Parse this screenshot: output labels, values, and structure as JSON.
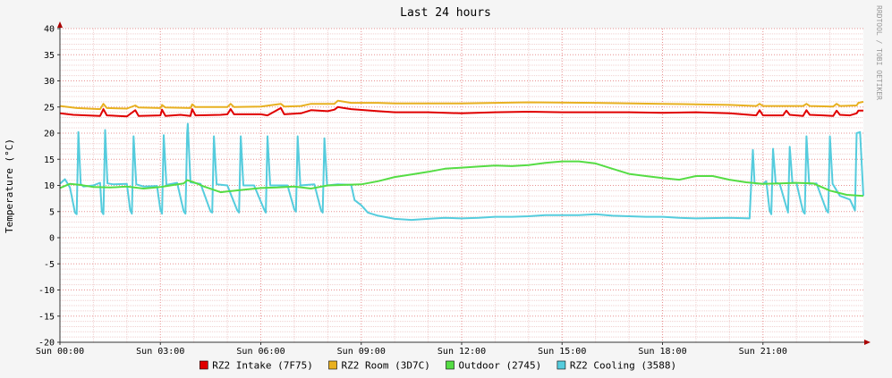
{
  "chart_data": {
    "type": "line",
    "title": "Last 24 hours",
    "ylabel": "Temperature (°C)",
    "watermark": "RRDTOOL / TOBI OETIKER",
    "xlim": [
      0,
      24
    ],
    "ylim": [
      -20,
      40
    ],
    "yticks": [
      40,
      35,
      30,
      25,
      20,
      15,
      10,
      5,
      0,
      -5,
      -10,
      -15,
      -20
    ],
    "xticks": [
      {
        "hour": 0,
        "label": "Sun 00:00"
      },
      {
        "hour": 3,
        "label": "Sun 03:00"
      },
      {
        "hour": 6,
        "label": "Sun 06:00"
      },
      {
        "hour": 9,
        "label": "Sun 09:00"
      },
      {
        "hour": 12,
        "label": "Sun 12:00"
      },
      {
        "hour": 15,
        "label": "Sun 15:00"
      },
      {
        "hour": 18,
        "label": "Sun 18:00"
      },
      {
        "hour": 21,
        "label": "Sun 21:00"
      }
    ],
    "grid": true,
    "legend_position": "bottom",
    "series": [
      {
        "name": "RZ2 Intake (7F75)",
        "color": "#e00000",
        "points": [
          [
            0,
            23.8
          ],
          [
            0.4,
            23.5
          ],
          [
            1.2,
            23.3
          ],
          [
            1.3,
            24.6
          ],
          [
            1.4,
            23.4
          ],
          [
            2,
            23.2
          ],
          [
            2.25,
            24.4
          ],
          [
            2.35,
            23.3
          ],
          [
            3,
            23.4
          ],
          [
            3.05,
            24.5
          ],
          [
            3.15,
            23.3
          ],
          [
            3.6,
            23.5
          ],
          [
            3.9,
            23.3
          ],
          [
            3.95,
            24.6
          ],
          [
            4.05,
            23.4
          ],
          [
            4.8,
            23.5
          ],
          [
            5,
            23.6
          ],
          [
            5.1,
            24.6
          ],
          [
            5.2,
            23.6
          ],
          [
            6,
            23.6
          ],
          [
            6.2,
            23.4
          ],
          [
            6.6,
            24.8
          ],
          [
            6.7,
            23.6
          ],
          [
            7.2,
            23.8
          ],
          [
            7.5,
            24.4
          ],
          [
            8,
            24.2
          ],
          [
            8.2,
            24.5
          ],
          [
            8.3,
            25
          ],
          [
            8.7,
            24.6
          ],
          [
            9.5,
            24.2
          ],
          [
            10,
            24
          ],
          [
            11,
            24
          ],
          [
            12,
            23.8
          ],
          [
            13,
            24
          ],
          [
            14,
            24.1
          ],
          [
            15,
            24
          ],
          [
            16,
            24
          ],
          [
            17,
            24
          ],
          [
            18,
            23.9
          ],
          [
            19,
            24
          ],
          [
            20,
            23.8
          ],
          [
            20.8,
            23.4
          ],
          [
            20.9,
            24.4
          ],
          [
            21,
            23.4
          ],
          [
            21.6,
            23.4
          ],
          [
            21.7,
            24.3
          ],
          [
            21.8,
            23.5
          ],
          [
            22.2,
            23.3
          ],
          [
            22.3,
            24.4
          ],
          [
            22.4,
            23.5
          ],
          [
            22.8,
            23.4
          ],
          [
            23.1,
            23.3
          ],
          [
            23.2,
            24.3
          ],
          [
            23.3,
            23.5
          ],
          [
            23.6,
            23.4
          ],
          [
            23.8,
            23.8
          ],
          [
            23.85,
            24.3
          ],
          [
            24,
            24.3
          ]
        ]
      },
      {
        "name": "RZ2 Room (3D7C)",
        "color": "#e8b020",
        "points": [
          [
            0,
            25.2
          ],
          [
            0.5,
            24.8
          ],
          [
            1.2,
            24.6
          ],
          [
            1.3,
            25.6
          ],
          [
            1.4,
            24.8
          ],
          [
            2,
            24.7
          ],
          [
            2.25,
            25.3
          ],
          [
            2.35,
            24.9
          ],
          [
            3,
            24.8
          ],
          [
            3.05,
            25.4
          ],
          [
            3.15,
            24.9
          ],
          [
            3.9,
            24.8
          ],
          [
            3.95,
            25.5
          ],
          [
            4.05,
            25
          ],
          [
            5,
            25
          ],
          [
            5.1,
            25.6
          ],
          [
            5.2,
            25
          ],
          [
            6,
            25.1
          ],
          [
            6.6,
            25.6
          ],
          [
            6.7,
            25.1
          ],
          [
            7.2,
            25.2
          ],
          [
            7.5,
            25.6
          ],
          [
            8,
            25.6
          ],
          [
            8.2,
            25.6
          ],
          [
            8.3,
            26.2
          ],
          [
            8.7,
            25.8
          ],
          [
            9.5,
            25.8
          ],
          [
            10,
            25.7
          ],
          [
            12,
            25.7
          ],
          [
            14,
            25.9
          ],
          [
            16,
            25.8
          ],
          [
            18,
            25.6
          ],
          [
            20,
            25.4
          ],
          [
            20.8,
            25.2
          ],
          [
            20.9,
            25.6
          ],
          [
            21,
            25.2
          ],
          [
            21.6,
            25.2
          ],
          [
            22.2,
            25.2
          ],
          [
            22.3,
            25.6
          ],
          [
            22.4,
            25.2
          ],
          [
            23.1,
            25.1
          ],
          [
            23.2,
            25.6
          ],
          [
            23.3,
            25.2
          ],
          [
            23.8,
            25.3
          ],
          [
            23.85,
            25.8
          ],
          [
            24,
            26
          ]
        ]
      },
      {
        "name": "Outdoor (2745)",
        "color": "#55dd44",
        "points": [
          [
            0,
            9.5
          ],
          [
            0.3,
            10.3
          ],
          [
            0.6,
            10.1
          ],
          [
            1,
            9.7
          ],
          [
            1.5,
            9.6
          ],
          [
            2,
            9.8
          ],
          [
            2.5,
            9.4
          ],
          [
            3,
            9.7
          ],
          [
            3.3,
            10
          ],
          [
            3.7,
            10.4
          ],
          [
            3.8,
            11
          ],
          [
            4,
            10.6
          ],
          [
            4.3,
            9.8
          ],
          [
            4.8,
            8.7
          ],
          [
            5.5,
            9.2
          ],
          [
            6,
            9.5
          ],
          [
            6.5,
            9.6
          ],
          [
            7,
            9.8
          ],
          [
            7.5,
            9.4
          ],
          [
            8,
            10
          ],
          [
            8.5,
            10.1
          ],
          [
            9,
            10.2
          ],
          [
            9.5,
            10.8
          ],
          [
            10,
            11.6
          ],
          [
            10.5,
            12.1
          ],
          [
            11,
            12.6
          ],
          [
            11.5,
            13.2
          ],
          [
            12,
            13.4
          ],
          [
            12.5,
            13.6
          ],
          [
            13,
            13.8
          ],
          [
            13.5,
            13.7
          ],
          [
            14,
            13.9
          ],
          [
            14.5,
            14.3
          ],
          [
            15,
            14.6
          ],
          [
            15.5,
            14.6
          ],
          [
            16,
            14.2
          ],
          [
            16.5,
            13.2
          ],
          [
            17,
            12.2
          ],
          [
            17.5,
            11.8
          ],
          [
            18,
            11.4
          ],
          [
            18.5,
            11.1
          ],
          [
            19,
            11.8
          ],
          [
            19.5,
            11.8
          ],
          [
            20,
            11.1
          ],
          [
            20.5,
            10.6
          ],
          [
            21,
            10.3
          ],
          [
            21.5,
            10.4
          ],
          [
            22,
            10.5
          ],
          [
            22.5,
            10.4
          ],
          [
            23,
            9
          ],
          [
            23.5,
            8.2
          ],
          [
            24,
            8
          ]
        ]
      },
      {
        "name": "RZ2 Cooling (3588)",
        "color": "#55ccdd",
        "points": [
          [
            0,
            10.3
          ],
          [
            0.15,
            11.2
          ],
          [
            0.3,
            9.6
          ],
          [
            0.45,
            4.8
          ],
          [
            0.5,
            4.5
          ],
          [
            0.55,
            20.2
          ],
          [
            0.62,
            10.3
          ],
          [
            0.7,
            9.8
          ],
          [
            1,
            10
          ],
          [
            1.2,
            10.5
          ],
          [
            1.25,
            5
          ],
          [
            1.3,
            4.5
          ],
          [
            1.35,
            20.6
          ],
          [
            1.42,
            10.4
          ],
          [
            1.6,
            10.2
          ],
          [
            2,
            10.3
          ],
          [
            2.1,
            5.2
          ],
          [
            2.15,
            4.6
          ],
          [
            2.2,
            19.4
          ],
          [
            2.28,
            10.2
          ],
          [
            2.5,
            9.8
          ],
          [
            2.9,
            9.9
          ],
          [
            3,
            5.3
          ],
          [
            3.05,
            4.6
          ],
          [
            3.1,
            19.6
          ],
          [
            3.18,
            10.1
          ],
          [
            3.5,
            10.5
          ],
          [
            3.7,
            5
          ],
          [
            3.75,
            4.6
          ],
          [
            3.8,
            20
          ],
          [
            3.82,
            21.8
          ],
          [
            3.9,
            10.6
          ],
          [
            4.2,
            10.3
          ],
          [
            4.5,
            5
          ],
          [
            4.55,
            4.8
          ],
          [
            4.6,
            19.4
          ],
          [
            4.68,
            10.2
          ],
          [
            5,
            10
          ],
          [
            5.3,
            5.2
          ],
          [
            5.35,
            4.8
          ],
          [
            5.4,
            19.4
          ],
          [
            5.48,
            10
          ],
          [
            5.8,
            10
          ],
          [
            6.1,
            5.4
          ],
          [
            6.15,
            4.8
          ],
          [
            6.2,
            19.4
          ],
          [
            6.28,
            10
          ],
          [
            6.8,
            10
          ],
          [
            7,
            5.4
          ],
          [
            7.05,
            5
          ],
          [
            7.1,
            19.4
          ],
          [
            7.18,
            10
          ],
          [
            7.6,
            10.2
          ],
          [
            7.8,
            5.2
          ],
          [
            7.85,
            4.8
          ],
          [
            7.9,
            19
          ],
          [
            7.98,
            10
          ],
          [
            8.3,
            10.2
          ],
          [
            8.7,
            10.1
          ],
          [
            8.8,
            7.2
          ],
          [
            9,
            6.2
          ],
          [
            9.2,
            4.8
          ],
          [
            9.5,
            4.2
          ],
          [
            10,
            3.6
          ],
          [
            10.5,
            3.4
          ],
          [
            11,
            3.6
          ],
          [
            11.5,
            3.8
          ],
          [
            12,
            3.7
          ],
          [
            12.5,
            3.8
          ],
          [
            13,
            4
          ],
          [
            13.5,
            4
          ],
          [
            14,
            4.1
          ],
          [
            14.5,
            4.3
          ],
          [
            15,
            4.3
          ],
          [
            15.5,
            4.3
          ],
          [
            16,
            4.5
          ],
          [
            16.5,
            4.2
          ],
          [
            17,
            4.1
          ],
          [
            17.5,
            4
          ],
          [
            18,
            4
          ],
          [
            18.5,
            3.8
          ],
          [
            19,
            3.7
          ],
          [
            20,
            3.8
          ],
          [
            20.6,
            3.7
          ],
          [
            20.65,
            10.5
          ],
          [
            20.7,
            16.8
          ],
          [
            20.75,
            10.4
          ],
          [
            21,
            10.3
          ],
          [
            21.1,
            10.8
          ],
          [
            21.2,
            5.2
          ],
          [
            21.25,
            4.5
          ],
          [
            21.3,
            17
          ],
          [
            21.38,
            10.5
          ],
          [
            21.5,
            10.3
          ],
          [
            21.75,
            4.8
          ],
          [
            21.8,
            17.4
          ],
          [
            21.88,
            10.5
          ],
          [
            22,
            10.5
          ],
          [
            22.2,
            5
          ],
          [
            22.25,
            4.6
          ],
          [
            22.3,
            19.4
          ],
          [
            22.38,
            10.3
          ],
          [
            22.6,
            10.4
          ],
          [
            22.9,
            5.2
          ],
          [
            22.95,
            4.8
          ],
          [
            23,
            19.4
          ],
          [
            23.08,
            10.3
          ],
          [
            23.3,
            8
          ],
          [
            23.6,
            7.3
          ],
          [
            23.75,
            5.2
          ],
          [
            23.8,
            20
          ],
          [
            23.9,
            20.2
          ],
          [
            24,
            8
          ]
        ]
      }
    ]
  }
}
